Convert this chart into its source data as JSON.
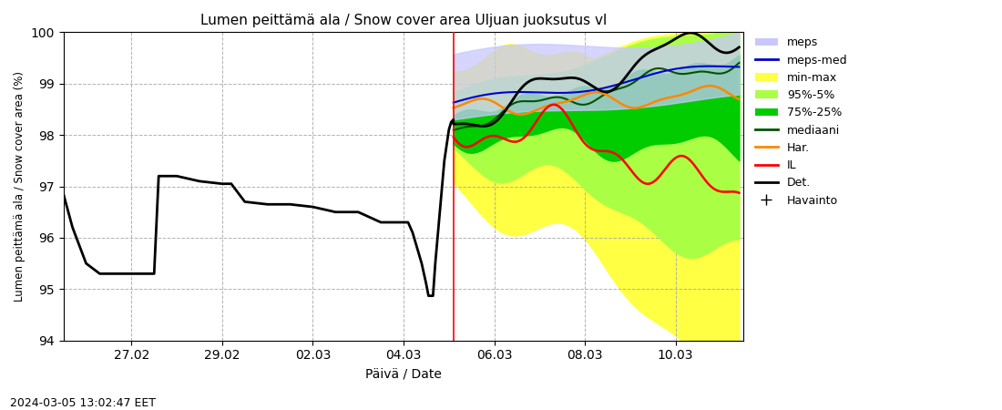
{
  "title": "Lumen peittämä ala / Snow cover area Uljuan juoksutus vl",
  "xlabel": "Päivä / Date",
  "ylabel": "Lumen peittämä ala / Snow cover area (%)",
  "ylim": [
    94,
    100
  ],
  "yticks": [
    94,
    95,
    96,
    97,
    98,
    99,
    100
  ],
  "xtick_labels": [
    "27.02",
    "29.02",
    "02.03",
    "04.03",
    "06.03",
    "08.03",
    "10.03"
  ],
  "xtick_positions": [
    2,
    4,
    6,
    8,
    10,
    12,
    14
  ],
  "xlim": [
    0.5,
    15.5
  ],
  "timestamp": "2024-03-05 13:02:47 EET",
  "vline_x": 9.1,
  "colors": {
    "meps_fill": "#c8c8ff",
    "meps_med": "#0000cc",
    "min_max_fill": "#ffff44",
    "pct95_5_fill": "#aaff44",
    "pct75_25_fill": "#00cc00",
    "mediaani": "#005500",
    "har": "#ff8800",
    "il": "#ff0000",
    "det": "#000000",
    "vline": "#ff0000",
    "grid": "#aaaaaa"
  },
  "background": "#ffffff"
}
